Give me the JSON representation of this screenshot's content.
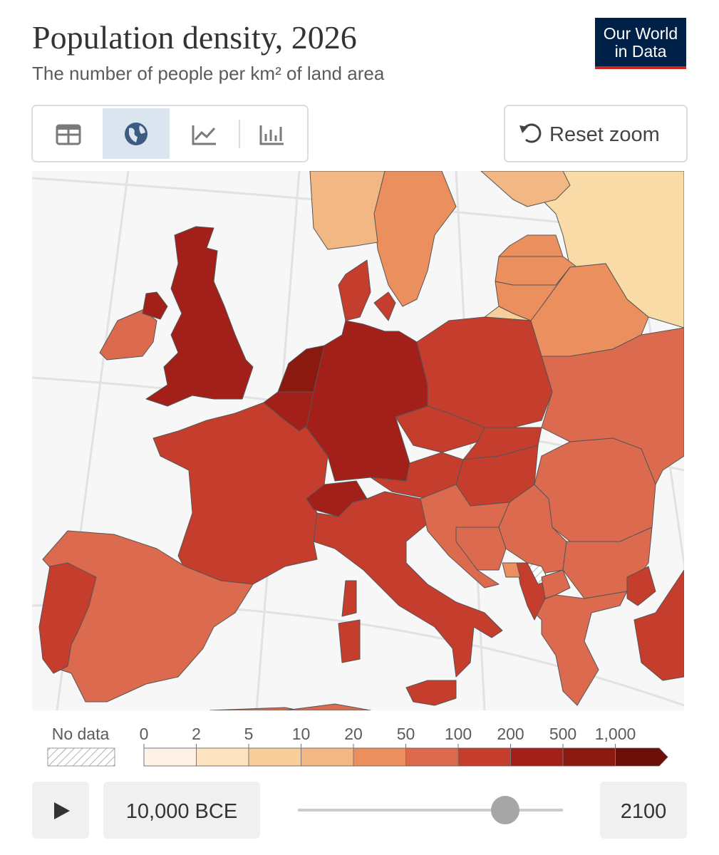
{
  "header": {
    "title": "Population density, 2026",
    "subtitle": "The number of people per km² of land area"
  },
  "logo": [
    "Our World",
    "in Data"
  ],
  "controls": {
    "reset_zoom": "Reset zoom"
  },
  "legend": {
    "no_data": "No data",
    "ticks": [
      "0",
      "2",
      "5",
      "10",
      "20",
      "50",
      "100",
      "200",
      "500",
      "1,000"
    ],
    "colors": [
      "#fef1e5",
      "#fde3bf",
      "#f8cf9a",
      "#f3b784",
      "#ec8f5e",
      "#dc6a4f",
      "#c43d2d",
      "#a3201a",
      "#8a1a10",
      "#6b0f08"
    ]
  },
  "timeline": {
    "start": "10,000 BCE",
    "end": "2100"
  }
}
